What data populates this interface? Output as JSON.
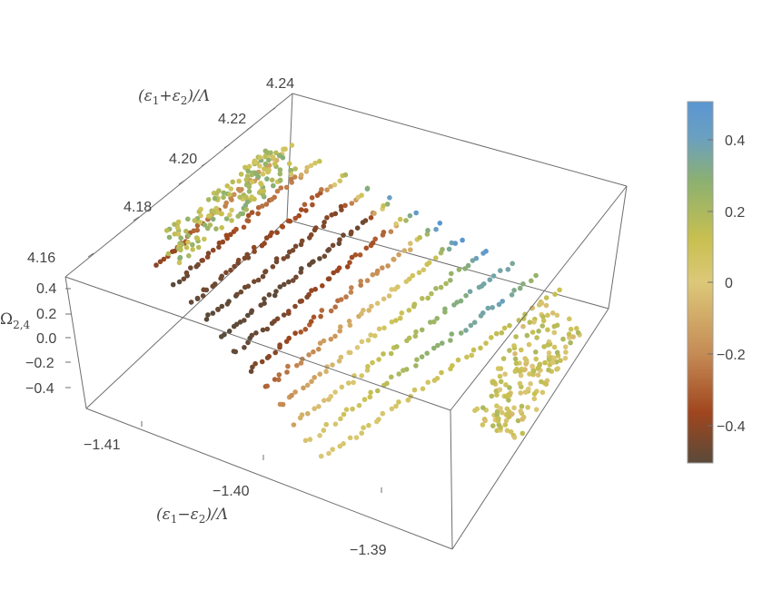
{
  "chart_data": {
    "type": "scatter",
    "dimensions": 3,
    "axes": {
      "x": {
        "label_main": "(ε",
        "label_sub1": "1",
        "label_op": "−ε",
        "label_sub2": "2",
        "label_tail": ")/Λ",
        "ticks": [
          "-1.41",
          "-1.40",
          "-1.39"
        ],
        "ticks_display": [
          "−1.41",
          "−1.40",
          "−1.39"
        ],
        "range": [
          -1.415,
          -1.385
        ]
      },
      "y": {
        "label_main": "(ε",
        "label_sub1": "1",
        "label_op": "+ε",
        "label_sub2": "2",
        "label_tail": ")/Λ",
        "ticks": [
          "4.16",
          "4.18",
          "4.20",
          "4.22",
          "4.24"
        ],
        "range": [
          4.155,
          4.245
        ]
      },
      "z": {
        "label_main": "Ω",
        "label_sub": "2,4",
        "ticks": [
          "0.4",
          "0.2",
          "0.0",
          "-0.2",
          "-0.4"
        ],
        "ticks_display": [
          "0.4",
          "0.2",
          "0.0",
          "−0.2",
          "−0.4"
        ],
        "range": [
          -0.5,
          0.5
        ]
      }
    },
    "colorbar": {
      "ticks": [
        "0.4",
        "0.2",
        "0",
        "-0.2",
        "-0.4"
      ],
      "ticks_display": [
        "0.4",
        "0.2",
        "0",
        "−0.2",
        "−0.4"
      ],
      "range": [
        -0.5,
        0.5
      ],
      "colors": [
        "#5a4a3a",
        "#a0461e",
        "#c58a55",
        "#dcc878",
        "#c8c050",
        "#8cb070",
        "#6aa0c0",
        "#5a96d2"
      ]
    },
    "series": [
      {
        "offset": 0.0,
        "value_range": [
          -0.4,
          -0.1
        ],
        "tail_value": 0.1
      },
      {
        "offset": 0.1,
        "value_range": [
          -0.5,
          -0.2
        ],
        "tail_value": 0.1
      },
      {
        "offset": 0.2,
        "value_range": [
          -0.5,
          -0.3
        ],
        "tail_value": 0.2
      },
      {
        "offset": 0.29,
        "value_range": [
          -0.5,
          -0.4
        ],
        "tail_value": 0.3
      },
      {
        "offset": 0.375,
        "value_range": [
          -0.5,
          -0.45
        ],
        "tail_value": 0.4
      },
      {
        "offset": 0.46,
        "value_range": [
          -0.5,
          -0.3
        ],
        "tail_value": 0.45
      },
      {
        "offset": 0.55,
        "value_range": [
          -0.45,
          -0.1
        ],
        "tail_value": 0.5
      },
      {
        "offset": 0.64,
        "value_range": [
          -0.3,
          0.1
        ],
        "tail_value": 0.5
      },
      {
        "offset": 0.73,
        "value_range": [
          -0.2,
          0.25
        ],
        "tail_value": 0.45
      },
      {
        "offset": 0.82,
        "value_range": [
          -0.1,
          0.35
        ],
        "tail_value": 0.35
      },
      {
        "offset": 0.91,
        "value_range": [
          0.0,
          0.4
        ],
        "tail_value": 0.25
      },
      {
        "offset": 1.0,
        "value_range": [
          0.0,
          0.15
        ],
        "tail_value": 0.1
      }
    ]
  }
}
